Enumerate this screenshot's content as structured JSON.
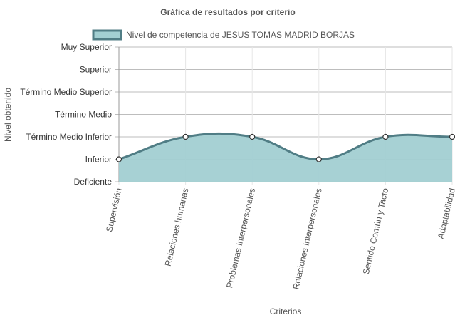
{
  "chart_data": {
    "type": "line",
    "title": "Gráfica de resultados por criterio",
    "x_label": "Criterios",
    "y_label": "Nivel obtenido",
    "categories": [
      "Supervisión",
      "Relaciones humanas",
      "Problemas Interpersonales",
      "Relaciones Interpersonales",
      "Sentido Común y Tacto",
      "Adaptabilidad"
    ],
    "series": [
      {
        "name": "Nivel de competencia de JESUS TOMAS MADRID BORJAS",
        "color": "#507d85",
        "fill": "#a2cfd2",
        "values": [
          1,
          2,
          2,
          1,
          2,
          2
        ]
      }
    ],
    "ylim": [
      0,
      6
    ],
    "yticks": [
      {
        "value": 0,
        "label": "Deficiente"
      },
      {
        "value": 1,
        "label": "Inferior"
      },
      {
        "value": 2,
        "label": "Término Medio Inferior"
      },
      {
        "value": 3,
        "label": "Término Medio"
      },
      {
        "value": 4,
        "label": "Término Medio Superior"
      },
      {
        "value": 5,
        "label": "Superior"
      },
      {
        "value": 6,
        "label": "Muy Superior"
      }
    ],
    "grid": true
  }
}
